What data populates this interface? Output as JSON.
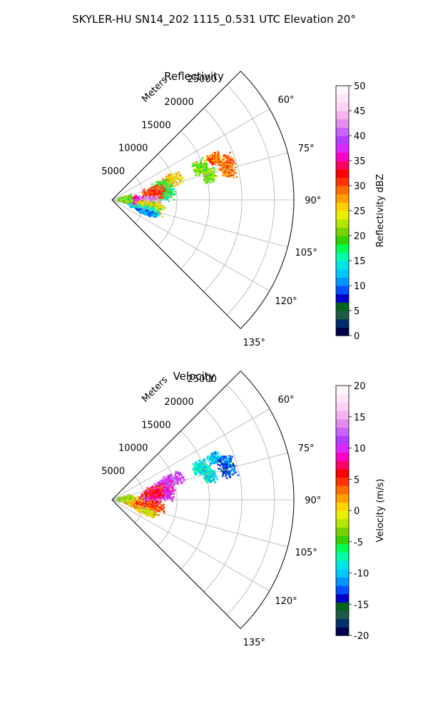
{
  "suptitle": "SKYLER-HU  SN14_202  1115_0.531 UTC Elevation 20°",
  "chart_data": [
    {
      "type": "polar-wedge",
      "title": "Reflectivity",
      "range_label": "Meters",
      "range_ticks": [
        "5000",
        "10000",
        "15000",
        "20000",
        "25000"
      ],
      "range_values": [
        5000,
        10000,
        15000,
        20000,
        25000
      ],
      "range_max": 28000,
      "azimuth_range_deg": [
        45,
        135
      ],
      "azimuth_ticks": [
        "60°",
        "75°",
        "90°",
        "105°",
        "120°",
        "135°"
      ],
      "azimuth_values": [
        60,
        75,
        90,
        105,
        120,
        135
      ],
      "grid": true,
      "colorbar": {
        "label": "Reflectivity dBZ",
        "ticks": [
          "0",
          "5",
          "10",
          "15",
          "20",
          "25",
          "30",
          "35",
          "40",
          "45",
          "50"
        ],
        "min": 0,
        "max": 50,
        "colors": [
          "#00004a",
          "#00306a",
          "#1e5a4a",
          "#00641e",
          "#0000c8",
          "#0050ff",
          "#0096ff",
          "#00c8ff",
          "#00e6e6",
          "#00ffaa",
          "#00ff50",
          "#32d200",
          "#78d200",
          "#b4e600",
          "#e6f000",
          "#ffd200",
          "#ffa000",
          "#ff6e00",
          "#ff3200",
          "#ff0000",
          "#ff0064",
          "#ff00c8",
          "#dc28ff",
          "#b43cff",
          "#c864ff",
          "#e68cf0",
          "#f5b4f0",
          "#ffd2f5",
          "#ffe6fa",
          "#fff5fc"
        ]
      },
      "echo_regions": [
        {
          "az": 68,
          "r": 17000,
          "spread_az": 2,
          "spread_r": 700,
          "level": 17
        },
        {
          "az": 74,
          "r": 18500,
          "spread_az": 4,
          "spread_r": 900,
          "level": 17
        },
        {
          "az": 70,
          "r": 14500,
          "spread_az": 3,
          "spread_r": 800,
          "level": 12
        },
        {
          "az": 76,
          "r": 15500,
          "spread_az": 3,
          "spread_r": 700,
          "level": 12
        },
        {
          "az": 72,
          "r": 9500,
          "spread_az": 4,
          "spread_r": 1400,
          "level": 15
        },
        {
          "az": 76,
          "r": 8000,
          "spread_az": 5,
          "spread_r": 1200,
          "level": 11
        },
        {
          "az": 84,
          "r": 8000,
          "spread_az": 5,
          "spread_r": 1200,
          "level": 10
        },
        {
          "az": 80,
          "r": 6500,
          "spread_az": 6,
          "spread_r": 1200,
          "level": 18
        },
        {
          "az": 92,
          "r": 5500,
          "spread_az": 6,
          "spread_r": 1300,
          "level": 25
        },
        {
          "az": 92,
          "r": 3000,
          "spread_az": 8,
          "spread_r": 1200,
          "level": 21
        },
        {
          "az": 88,
          "r": 2000,
          "spread_az": 10,
          "spread_r": 800,
          "level": 12
        },
        {
          "az": 100,
          "r": 6000,
          "spread_az": 6,
          "spread_r": 1500,
          "level": 14
        },
        {
          "az": 106,
          "r": 5000,
          "spread_az": 4,
          "spread_r": 1800,
          "level": 8
        },
        {
          "az": 110,
          "r": 5500,
          "spread_az": 3,
          "spread_r": 1200,
          "level": 6
        }
      ]
    },
    {
      "type": "polar-wedge",
      "title": "Velocity",
      "range_label": "Meters",
      "range_ticks": [
        "5000",
        "10000",
        "15000",
        "20000",
        "25000"
      ],
      "range_values": [
        5000,
        10000,
        15000,
        20000,
        25000
      ],
      "range_max": 28000,
      "azimuth_range_deg": [
        45,
        135
      ],
      "azimuth_ticks": [
        "60°",
        "75°",
        "90°",
        "105°",
        "120°",
        "135°"
      ],
      "azimuth_values": [
        60,
        75,
        90,
        105,
        120,
        135
      ],
      "grid": true,
      "colorbar": {
        "label": "Velocity (m/s)",
        "ticks": [
          "-20",
          "-15",
          "-10",
          "-5",
          "0",
          "5",
          "10",
          "15",
          "20"
        ],
        "min": -20,
        "max": 20,
        "colors": [
          "#00004a",
          "#00306a",
          "#1e5a4a",
          "#00641e",
          "#0000c8",
          "#0050ff",
          "#0096ff",
          "#00c8ff",
          "#00e6e6",
          "#00ffaa",
          "#00ff50",
          "#32d200",
          "#78d200",
          "#b4e600",
          "#e6f000",
          "#ffd200",
          "#ffa000",
          "#ff6e00",
          "#ff3200",
          "#ff0000",
          "#ff0064",
          "#ff00c8",
          "#dc28ff",
          "#b43cff",
          "#c864ff",
          "#e68cf0",
          "#f5b4f0",
          "#ffd2f5",
          "#ffe6fa",
          "#fff5fc"
        ]
      },
      "echo_regions": [
        {
          "az": 68,
          "r": 17000,
          "spread_az": 2,
          "spread_r": 700,
          "level": 7
        },
        {
          "az": 74,
          "r": 18500,
          "spread_az": 4,
          "spread_r": 900,
          "level": 5
        },
        {
          "az": 70,
          "r": 14500,
          "spread_az": 3,
          "spread_r": 800,
          "level": 8
        },
        {
          "az": 76,
          "r": 15500,
          "spread_az": 3,
          "spread_r": 700,
          "level": 8
        },
        {
          "az": 72,
          "r": 9500,
          "spread_az": 4,
          "spread_r": 1400,
          "level": 23
        },
        {
          "az": 76,
          "r": 8000,
          "spread_az": 5,
          "spread_r": 1200,
          "level": 22
        },
        {
          "az": 84,
          "r": 8000,
          "spread_az": 5,
          "spread_r": 1200,
          "level": 22
        },
        {
          "az": 80,
          "r": 6500,
          "spread_az": 6,
          "spread_r": 1200,
          "level": 19
        },
        {
          "az": 92,
          "r": 5500,
          "spread_az": 6,
          "spread_r": 1300,
          "level": 21
        },
        {
          "az": 92,
          "r": 3000,
          "spread_az": 8,
          "spread_r": 1200,
          "level": 16
        },
        {
          "az": 88,
          "r": 2000,
          "spread_az": 10,
          "spread_r": 800,
          "level": 13
        },
        {
          "az": 100,
          "r": 6000,
          "spread_az": 6,
          "spread_r": 1500,
          "level": 18
        },
        {
          "az": 106,
          "r": 5000,
          "spread_az": 4,
          "spread_r": 1800,
          "level": 16
        },
        {
          "az": 110,
          "r": 5500,
          "spread_az": 3,
          "spread_r": 1200,
          "level": 14
        }
      ]
    }
  ]
}
